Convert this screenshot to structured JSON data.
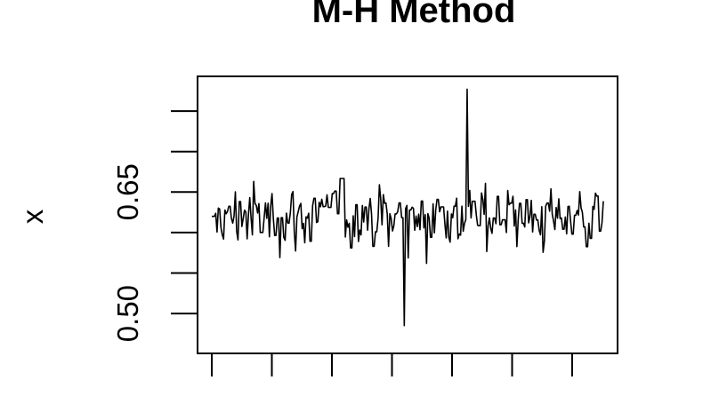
{
  "chart_data": {
    "type": "line",
    "title": "M-H Method",
    "xlabel": "",
    "ylabel": "x",
    "y_ticks": [
      0.5,
      0.55,
      0.6,
      0.65,
      0.7,
      0.75
    ],
    "y_tick_labels": [
      "0.50",
      "",
      "",
      "0.65",
      "",
      ""
    ],
    "ylim": [
      0.465,
      0.783
    ],
    "x_tick_count": 7,
    "x_tick_labels": [],
    "n_points": 300,
    "mean": 0.62,
    "min_observed": 0.485,
    "max_observed": 0.777,
    "grid": false,
    "series": [
      {
        "color": "#000000"
      }
    ]
  }
}
